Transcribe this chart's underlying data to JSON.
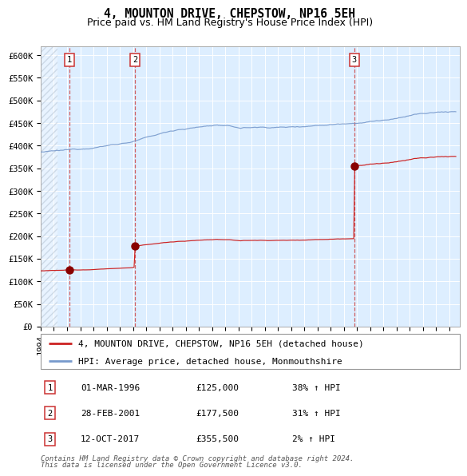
{
  "title": "4, MOUNTON DRIVE, CHEPSTOW, NP16 5EH",
  "subtitle": "Price paid vs. HM Land Registry's House Price Index (HPI)",
  "ylim": [
    0,
    620000
  ],
  "yticks": [
    0,
    50000,
    100000,
    150000,
    200000,
    250000,
    300000,
    350000,
    400000,
    450000,
    500000,
    550000,
    600000
  ],
  "ytick_labels": [
    "£0",
    "£50K",
    "£100K",
    "£150K",
    "£200K",
    "£250K",
    "£300K",
    "£350K",
    "£400K",
    "£450K",
    "£500K",
    "£550K",
    "£600K"
  ],
  "hpi_color": "#7799cc",
  "price_color": "#cc2222",
  "dot_color": "#880000",
  "vline_color": "#cc4444",
  "background_color": "#ddeeff",
  "grid_color": "#ffffff",
  "xmin": 1994.0,
  "xmax": 2025.8,
  "transactions": [
    {
      "num": 1,
      "date": "01-MAR-1996",
      "x": 1996.17,
      "price": 125000,
      "pct": "38%",
      "dir": "↑"
    },
    {
      "num": 2,
      "date": "28-FEB-2001",
      "x": 2001.16,
      "price": 177500,
      "pct": "31%",
      "dir": "↑"
    },
    {
      "num": 3,
      "date": "12-OCT-2017",
      "x": 2017.78,
      "price": 355500,
      "pct": "2%",
      "dir": "↑"
    }
  ],
  "footer_line1": "Contains HM Land Registry data © Crown copyright and database right 2024.",
  "footer_line2": "This data is licensed under the Open Government Licence v3.0.",
  "title_fontsize": 10.5,
  "subtitle_fontsize": 9,
  "tick_fontsize": 7.5,
  "legend_fontsize": 8,
  "footer_fontsize": 6.5
}
